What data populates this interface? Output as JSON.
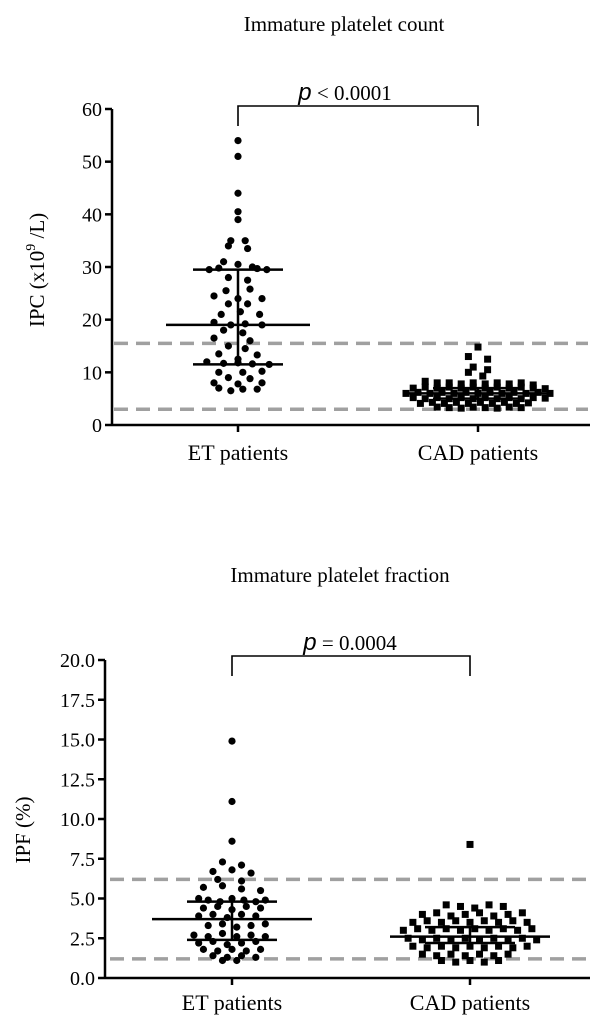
{
  "chart_data": [
    {
      "type": "scatter",
      "title": "Immature platelet count",
      "ylabel": "IPC (x10",
      "ylabel_sup": "9",
      "ylabel_tail": " /L)",
      "categories": [
        "ET patients",
        "CAD patients"
      ],
      "ylim": [
        0,
        60
      ],
      "yticks": [
        "0",
        "10",
        "20",
        "30",
        "40",
        "50",
        "60"
      ],
      "p_label": "p",
      "p_text": " < 0.0001",
      "reference_lines": [
        3,
        15.5
      ],
      "series": [
        {
          "marker": "circle",
          "summary": {
            "center": 19,
            "low": 11.5,
            "high": 29.5
          },
          "points": [
            [
              1,
              54
            ],
            [
              1,
              51
            ],
            [
              1,
              44
            ],
            [
              1,
              40.5
            ],
            [
              1,
              39
            ],
            [
              0.97,
              35
            ],
            [
              1.03,
              35
            ],
            [
              0.96,
              34
            ],
            [
              1.04,
              33.5
            ],
            [
              0.94,
              31
            ],
            [
              1.0,
              30.5
            ],
            [
              1.06,
              30
            ],
            [
              0.88,
              29.5
            ],
            [
              0.92,
              29.8
            ],
            [
              1.08,
              29.7
            ],
            [
              1.12,
              29.5
            ],
            [
              0.96,
              28
            ],
            [
              1.04,
              27.5
            ],
            [
              0.95,
              25.5
            ],
            [
              1.05,
              25.8
            ],
            [
              0.9,
              24.5
            ],
            [
              1.0,
              24
            ],
            [
              1.1,
              24
            ],
            [
              0.96,
              23
            ],
            [
              1.04,
              23
            ],
            [
              0.93,
              21
            ],
            [
              1.01,
              21.5
            ],
            [
              1.09,
              21
            ],
            [
              0.9,
              19.5
            ],
            [
              0.97,
              19
            ],
            [
              1.03,
              19.2
            ],
            [
              1.1,
              19
            ],
            [
              0.94,
              18
            ],
            [
              1.02,
              17.5
            ],
            [
              0.9,
              16.5
            ],
            [
              1.05,
              16
            ],
            [
              0.96,
              15
            ],
            [
              1.03,
              14.5
            ],
            [
              0.92,
              13.5
            ],
            [
              1.08,
              13.3
            ],
            [
              1.0,
              12.5
            ],
            [
              0.87,
              12
            ],
            [
              0.94,
              11.7
            ],
            [
              1.0,
              11.8
            ],
            [
              1.06,
              11.6
            ],
            [
              1.13,
              11.5
            ],
            [
              0.92,
              10
            ],
            [
              1.02,
              10
            ],
            [
              1.1,
              10.2
            ],
            [
              0.96,
              9
            ],
            [
              1.05,
              8.8
            ],
            [
              0.9,
              8
            ],
            [
              1.0,
              7.8
            ],
            [
              1.1,
              8
            ],
            [
              0.92,
              7
            ],
            [
              1.02,
              6.8
            ],
            [
              1.08,
              6.8
            ],
            [
              0.97,
              6.5
            ]
          ]
        },
        {
          "marker": "square",
          "summary": {
            "center": 6,
            "low": 5,
            "high": 7
          },
          "points": [
            [
              2.0,
              14.8
            ],
            [
              1.96,
              13
            ],
            [
              2.04,
              12.5
            ],
            [
              1.98,
              11
            ],
            [
              2.04,
              10.5
            ],
            [
              1.96,
              10
            ],
            [
              2.02,
              9.3
            ],
            [
              1.78,
              8.3
            ],
            [
              1.83,
              8
            ],
            [
              1.88,
              8
            ],
            [
              1.93,
              7.8
            ],
            [
              1.98,
              8
            ],
            [
              2.03,
              7.8
            ],
            [
              2.08,
              8
            ],
            [
              2.13,
              7.8
            ],
            [
              2.18,
              8
            ],
            [
              2.23,
              7.6
            ],
            [
              1.73,
              7
            ],
            [
              1.78,
              7.2
            ],
            [
              1.83,
              7
            ],
            [
              1.88,
              7.2
            ],
            [
              1.93,
              7
            ],
            [
              1.98,
              7.2
            ],
            [
              2.03,
              7
            ],
            [
              2.08,
              7.2
            ],
            [
              2.13,
              7
            ],
            [
              2.18,
              7.2
            ],
            [
              2.23,
              7
            ],
            [
              2.28,
              6.9
            ],
            [
              1.7,
              6
            ],
            [
              1.75,
              6.2
            ],
            [
              1.8,
              6
            ],
            [
              1.85,
              6.2
            ],
            [
              1.9,
              6
            ],
            [
              1.95,
              6.2
            ],
            [
              2.0,
              6
            ],
            [
              2.05,
              6.2
            ],
            [
              2.1,
              6
            ],
            [
              2.15,
              6.2
            ],
            [
              2.2,
              6
            ],
            [
              2.25,
              6.2
            ],
            [
              2.3,
              6
            ],
            [
              1.73,
              5.2
            ],
            [
              1.78,
              5
            ],
            [
              1.83,
              5.2
            ],
            [
              1.88,
              5
            ],
            [
              1.93,
              5.2
            ],
            [
              1.98,
              5
            ],
            [
              2.03,
              5.2
            ],
            [
              2.08,
              5
            ],
            [
              2.13,
              5.2
            ],
            [
              2.18,
              5
            ],
            [
              2.23,
              5.2
            ],
            [
              2.28,
              5.1
            ],
            [
              1.76,
              4.1
            ],
            [
              1.81,
              4.3
            ],
            [
              1.86,
              4.1
            ],
            [
              1.91,
              4.3
            ],
            [
              1.96,
              4.1
            ],
            [
              2.01,
              4.3
            ],
            [
              2.06,
              4.1
            ],
            [
              2.11,
              4.3
            ],
            [
              2.16,
              4.1
            ],
            [
              2.21,
              4.2
            ],
            [
              1.83,
              3.4
            ],
            [
              1.88,
              3.3
            ],
            [
              1.93,
              3.2
            ],
            [
              1.98,
              3.4
            ],
            [
              2.03,
              3.3
            ],
            [
              2.08,
              3.2
            ],
            [
              2.13,
              3.4
            ],
            [
              2.18,
              3.3
            ]
          ]
        }
      ]
    },
    {
      "type": "scatter",
      "title": "Immature platelet fraction",
      "ylabel": "IPF (%)",
      "categories": [
        "ET patients",
        "CAD patients"
      ],
      "ylim": [
        0,
        20
      ],
      "yticks": [
        "0.0",
        "2.5",
        "5.0",
        "7.5",
        "10.0",
        "12.5",
        "15.0",
        "17.5",
        "20.0"
      ],
      "p_label": "p",
      "p_text": " = 0.0004",
      "reference_lines": [
        1.2,
        6.2
      ],
      "series": [
        {
          "marker": "circle",
          "summary": {
            "center": 3.7,
            "low": 2.4,
            "high": 4.8
          },
          "points": [
            [
              1.0,
              14.9
            ],
            [
              1.0,
              11.1
            ],
            [
              1.0,
              8.6
            ],
            [
              0.96,
              7.3
            ],
            [
              1.04,
              7.1
            ],
            [
              0.92,
              6.7
            ],
            [
              1.0,
              6.8
            ],
            [
              1.08,
              6.6
            ],
            [
              0.94,
              6.2
            ],
            [
              1.04,
              6.1
            ],
            [
              0.88,
              5.7
            ],
            [
              0.96,
              5.8
            ],
            [
              1.04,
              5.6
            ],
            [
              1.12,
              5.5
            ],
            [
              0.86,
              5
            ],
            [
              0.9,
              4.9
            ],
            [
              0.95,
              4.8
            ],
            [
              1.0,
              5
            ],
            [
              1.05,
              4.9
            ],
            [
              1.1,
              4.8
            ],
            [
              1.14,
              4.9
            ],
            [
              0.88,
              4.4
            ],
            [
              0.94,
              4.5
            ],
            [
              1.0,
              4.3
            ],
            [
              1.06,
              4.5
            ],
            [
              1.12,
              4.4
            ],
            [
              0.86,
              3.9
            ],
            [
              0.92,
              4
            ],
            [
              0.98,
              3.8
            ],
            [
              1.04,
              4
            ],
            [
              1.1,
              3.9
            ],
            [
              0.9,
              3.3
            ],
            [
              0.96,
              3.4
            ],
            [
              1.02,
              3.2
            ],
            [
              1.08,
              3.3
            ],
            [
              1.14,
              3.4
            ],
            [
              0.84,
              2.7
            ],
            [
              0.9,
              2.6
            ],
            [
              0.96,
              2.8
            ],
            [
              1.02,
              2.6
            ],
            [
              1.08,
              2.7
            ],
            [
              1.14,
              2.6
            ],
            [
              0.86,
              2.2
            ],
            [
              0.92,
              2.3
            ],
            [
              0.98,
              2.1
            ],
            [
              1.04,
              2.2
            ],
            [
              1.1,
              2.3
            ],
            [
              0.88,
              1.8
            ],
            [
              0.94,
              1.7
            ],
            [
              1.0,
              1.8
            ],
            [
              1.06,
              1.7
            ],
            [
              1.12,
              1.8
            ],
            [
              0.92,
              1.4
            ],
            [
              0.98,
              1.3
            ],
            [
              1.04,
              1.4
            ],
            [
              1.1,
              1.3
            ],
            [
              0.96,
              1.1
            ],
            [
              1.02,
              1.1
            ]
          ]
        },
        {
          "marker": "square",
          "summary": {
            "center": 2.6,
            "low": 2.2,
            "high": 3.2
          },
          "points": [
            [
              2.0,
              8.4
            ],
            [
              1.9,
              4.6
            ],
            [
              1.96,
              4.5
            ],
            [
              2.02,
              4.4
            ],
            [
              2.08,
              4.6
            ],
            [
              2.14,
              4.5
            ],
            [
              1.8,
              4
            ],
            [
              1.86,
              4.1
            ],
            [
              1.92,
              3.9
            ],
            [
              1.98,
              4
            ],
            [
              2.04,
              4.1
            ],
            [
              2.1,
              3.9
            ],
            [
              2.16,
              4
            ],
            [
              2.22,
              4.1
            ],
            [
              1.76,
              3.5
            ],
            [
              1.82,
              3.6
            ],
            [
              1.88,
              3.5
            ],
            [
              1.94,
              3.6
            ],
            [
              2.0,
              3.5
            ],
            [
              2.06,
              3.6
            ],
            [
              2.12,
              3.5
            ],
            [
              2.18,
              3.6
            ],
            [
              2.24,
              3.5
            ],
            [
              1.72,
              3
            ],
            [
              1.78,
              3.1
            ],
            [
              1.84,
              3
            ],
            [
              1.9,
              3.1
            ],
            [
              1.96,
              3
            ],
            [
              2.02,
              3.1
            ],
            [
              2.08,
              3
            ],
            [
              2.14,
              3.1
            ],
            [
              2.2,
              3
            ],
            [
              2.26,
              3.1
            ],
            [
              1.74,
              2.5
            ],
            [
              1.8,
              2.4
            ],
            [
              1.86,
              2.5
            ],
            [
              1.92,
              2.4
            ],
            [
              1.98,
              2.5
            ],
            [
              2.04,
              2.4
            ],
            [
              2.1,
              2.5
            ],
            [
              2.16,
              2.4
            ],
            [
              2.22,
              2.5
            ],
            [
              2.28,
              2.4
            ],
            [
              1.76,
              2
            ],
            [
              1.82,
              1.9
            ],
            [
              1.88,
              2
            ],
            [
              1.94,
              1.9
            ],
            [
              2.0,
              2
            ],
            [
              2.06,
              1.9
            ],
            [
              2.12,
              2
            ],
            [
              2.18,
              1.9
            ],
            [
              2.24,
              2
            ],
            [
              1.8,
              1.5
            ],
            [
              1.86,
              1.4
            ],
            [
              1.92,
              1.5
            ],
            [
              1.98,
              1.4
            ],
            [
              2.04,
              1.5
            ],
            [
              2.1,
              1.4
            ],
            [
              2.16,
              1.5
            ],
            [
              1.88,
              1.1
            ],
            [
              1.94,
              1.0
            ],
            [
              2.0,
              1.1
            ],
            [
              2.06,
              1.0
            ],
            [
              2.12,
              1.1
            ]
          ]
        }
      ]
    }
  ]
}
